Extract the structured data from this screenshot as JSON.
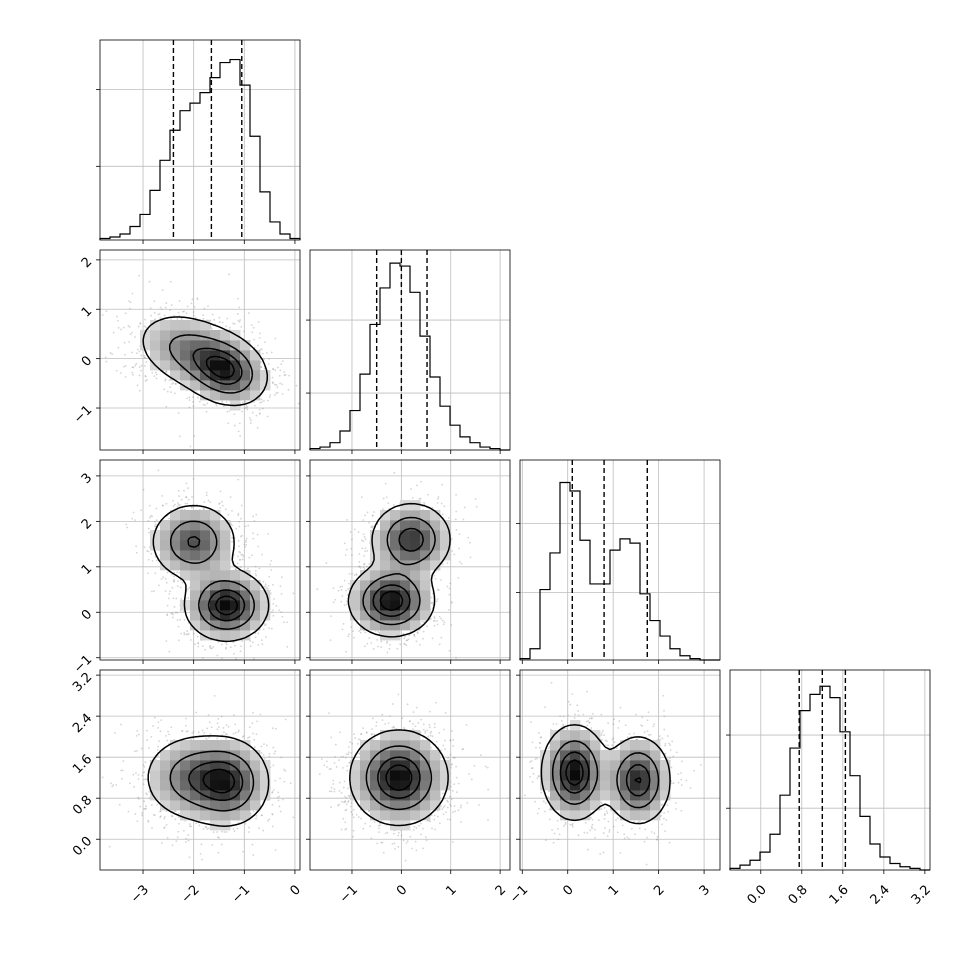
{
  "figure": {
    "type": "corner-plot",
    "background": "#ffffff",
    "grid_color": "#bdbdbd",
    "ink_color": "#000000"
  },
  "chart_data": {
    "type": "corner",
    "n_params": 4,
    "params": [
      {
        "range": [
          -3.85,
          0.1
        ],
        "ticks": [
          -3,
          -2,
          -1,
          0
        ],
        "tick_labels": [
          "−3",
          "−2",
          "−1",
          "0"
        ]
      },
      {
        "range": [
          -1.85,
          2.2
        ],
        "ticks": [
          -1,
          0,
          1,
          2
        ],
        "tick_labels": [
          "−1",
          "0",
          "1",
          "2"
        ]
      },
      {
        "range": [
          -1.05,
          3.35
        ],
        "ticks": [
          -1,
          0,
          1,
          2,
          3
        ],
        "tick_labels": [
          "−1",
          "0",
          "1",
          "2",
          "3"
        ]
      },
      {
        "range": [
          -0.6,
          3.3
        ],
        "ticks": [
          0.0,
          0.8,
          1.6,
          2.4,
          3.2
        ],
        "tick_labels": [
          "0.0",
          "0.8",
          "1.6",
          "2.4",
          "3.2"
        ]
      }
    ],
    "histograms": [
      {
        "edges_range": [
          -3.85,
          0.1
        ],
        "bins": 20,
        "counts": [
          1,
          2,
          4,
          9,
          17,
          33,
          53,
          73,
          86,
          91,
          98,
          108,
          118,
          120,
          103,
          69,
          32,
          12,
          4,
          1
        ],
        "ymax": 133,
        "yticks": [
          49,
          100
        ],
        "quantiles": [
          -2.4,
          -1.65,
          -1.05
        ]
      },
      {
        "edges_range": [
          -1.85,
          2.2
        ],
        "bins": 20,
        "counts": [
          1,
          2,
          5,
          13,
          27,
          52,
          86,
          111,
          128,
          126,
          108,
          78,
          50,
          30,
          17,
          9,
          5,
          2,
          1,
          0
        ],
        "ymax": 137,
        "yticks": [
          39,
          89
        ],
        "quantiles": [
          -0.5,
          0.0,
          0.52
        ]
      },
      {
        "edges_range": [
          -1.05,
          3.35
        ],
        "bins": 20,
        "counts": [
          1,
          8,
          50,
          76,
          126,
          120,
          85,
          54,
          54,
          78,
          86,
          83,
          47,
          28,
          17,
          8,
          3,
          1,
          0,
          0
        ],
        "ymax": 142,
        "yticks": [
          48,
          97
        ],
        "quantiles": [
          0.1,
          0.8,
          1.75
        ]
      },
      {
        "edges_range": [
          -0.6,
          3.3
        ],
        "bins": 20,
        "counts": [
          1,
          3,
          6,
          11,
          22,
          46,
          75,
          98,
          108,
          113,
          106,
          85,
          58,
          33,
          16,
          8,
          4,
          2,
          1,
          0
        ],
        "ymax": 123,
        "yticks": [
          38,
          83
        ],
        "quantiles": [
          0.75,
          1.2,
          1.65
        ]
      }
    ],
    "pairs": [
      {
        "x": 0,
        "y": 1,
        "mixture": [
          {
            "w": 0.5,
            "mx": -2.05,
            "my": 0.15,
            "sx": 0.55,
            "sy": 0.4,
            "rho": -0.3
          },
          {
            "w": 0.5,
            "mx": -1.35,
            "my": -0.25,
            "sx": 0.4,
            "sy": 0.35,
            "rho": -0.2
          }
        ]
      },
      {
        "x": 0,
        "y": 2,
        "mixture": [
          {
            "w": 0.45,
            "mx": -2.0,
            "my": 1.55,
            "sx": 0.42,
            "sy": 0.42,
            "rho": 0.0
          },
          {
            "w": 0.55,
            "mx": -1.35,
            "my": 0.15,
            "sx": 0.4,
            "sy": 0.38,
            "rho": 0.0
          }
        ]
      },
      {
        "x": 0,
        "y": 3,
        "mixture": [
          {
            "w": 0.5,
            "mx": -2.0,
            "my": 1.2,
            "sx": 0.5,
            "sy": 0.42,
            "rho": 0.0
          },
          {
            "w": 0.5,
            "mx": -1.3,
            "my": 1.1,
            "sx": 0.4,
            "sy": 0.42,
            "rho": 0.0
          }
        ]
      },
      {
        "x": 1,
        "y": 2,
        "mixture": [
          {
            "w": 0.45,
            "mx": 0.2,
            "my": 1.6,
            "sx": 0.4,
            "sy": 0.4,
            "rho": 0.0
          },
          {
            "w": 0.55,
            "mx": -0.2,
            "my": 0.25,
            "sx": 0.42,
            "sy": 0.38,
            "rho": 0.0
          }
        ]
      },
      {
        "x": 1,
        "y": 3,
        "mixture": [
          {
            "w": 1.0,
            "mx": -0.05,
            "my": 1.2,
            "sx": 0.48,
            "sy": 0.45,
            "rho": 0.0
          }
        ]
      },
      {
        "x": 2,
        "y": 3,
        "mixture": [
          {
            "w": 0.55,
            "mx": 0.15,
            "my": 1.3,
            "sx": 0.35,
            "sy": 0.45,
            "rho": 0.0
          },
          {
            "w": 0.45,
            "mx": 1.55,
            "my": 1.15,
            "sx": 0.35,
            "sy": 0.42,
            "rho": 0.0
          }
        ]
      }
    ],
    "contour_levels": [
      0.118,
      0.393,
      0.675,
      0.864
    ],
    "grid": true
  }
}
